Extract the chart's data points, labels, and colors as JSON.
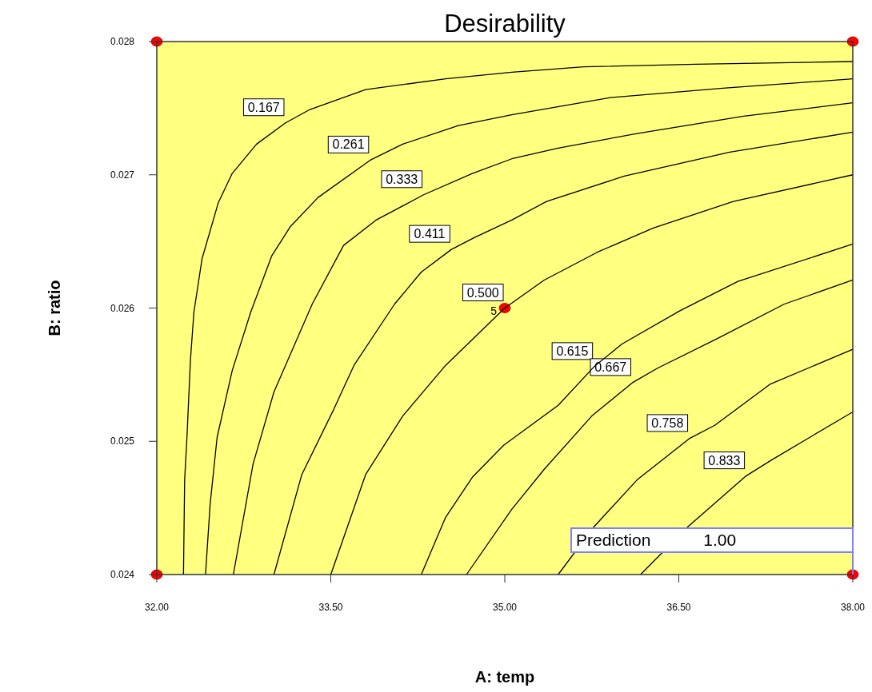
{
  "chart_data": {
    "type": "line",
    "title": "Desirability",
    "xlabel": "A: temp",
    "ylabel": "B: ratio",
    "xlim": [
      32,
      38
    ],
    "ylim": [
      0.024,
      0.028
    ],
    "xticks": [
      {
        "value": 32,
        "label": "32.00"
      },
      {
        "value": 33.5,
        "label": "33.50"
      },
      {
        "value": 35,
        "label": "35.00"
      },
      {
        "value": 36.5,
        "label": "36.50"
      },
      {
        "value": 38,
        "label": "38.00"
      }
    ],
    "yticks": [
      0.024,
      0.025,
      0.026,
      0.027,
      0.028
    ],
    "series": [
      {
        "name": "0.167",
        "color": "#000000",
        "x": [
          32.23,
          32.24,
          32.26,
          32.29,
          32.32,
          32.39,
          32.53,
          32.65,
          32.86,
          33.11,
          33.32,
          33.8,
          34.49,
          35.06,
          35.68,
          36.65,
          38
        ],
        "values": [
          0.024,
          0.02471,
          0.02503,
          0.02561,
          0.02597,
          0.02637,
          0.02679,
          0.02701,
          0.02723,
          0.02739,
          0.02749,
          0.02764,
          0.02772,
          0.02777,
          0.02781,
          0.02783,
          0.02785
        ]
      },
      {
        "name": "0.261",
        "color": "#000000",
        "x": [
          32.42,
          32.46,
          32.52,
          32.65,
          32.81,
          32.99,
          33.15,
          33.39,
          33.84,
          34.12,
          34.6,
          35.06,
          35.91,
          36.88,
          38
        ],
        "values": [
          0.024,
          0.02453,
          0.02503,
          0.02553,
          0.02597,
          0.02639,
          0.02661,
          0.02683,
          0.02711,
          0.02723,
          0.02737,
          0.02745,
          0.02758,
          0.02765,
          0.02772
        ]
      },
      {
        "name": "0.333",
        "color": "#000000",
        "x": [
          32.66,
          32.83,
          33.01,
          33.34,
          33.61,
          33.89,
          34.3,
          34.72,
          35.06,
          35.46,
          36.14,
          37.06,
          38
        ],
        "values": [
          0.024,
          0.02483,
          0.02537,
          0.02603,
          0.02647,
          0.02666,
          0.02685,
          0.02701,
          0.02712,
          0.0272,
          0.02731,
          0.02744,
          0.02754
        ]
      },
      {
        "name": "0.411",
        "color": "#000000",
        "x": [
          33.01,
          33.25,
          33.52,
          33.7,
          34.05,
          34.28,
          34.54,
          34.74,
          35.06,
          35.36,
          36.03,
          36.94,
          38
        ],
        "values": [
          0.024,
          0.02475,
          0.02523,
          0.02557,
          0.02603,
          0.02627,
          0.02644,
          0.02653,
          0.02666,
          0.0268,
          0.02699,
          0.02717,
          0.02732
        ]
      },
      {
        "name": "0.500",
        "color": "#000000",
        "x": [
          33.5,
          33.8,
          34.12,
          34.49,
          35,
          35.34,
          35.8,
          36.28,
          36.97,
          38
        ],
        "values": [
          0.024,
          0.02475,
          0.02519,
          0.02557,
          0.026,
          0.02621,
          0.02642,
          0.0266,
          0.0268,
          0.027
        ]
      },
      {
        "name": "0.615",
        "color": "#000000",
        "x": [
          34.28,
          34.49,
          34.72,
          34.99,
          35.46,
          35.77,
          36.01,
          36.51,
          37.01,
          38
        ],
        "values": [
          0.024,
          0.02443,
          0.02473,
          0.02497,
          0.02527,
          0.02556,
          0.02573,
          0.02598,
          0.0262,
          0.02648
        ]
      },
      {
        "name": "0.667",
        "color": "#000000",
        "x": [
          34.67,
          35.06,
          35.34,
          35.75,
          36.1,
          36.32,
          36.83,
          37.41,
          38
        ],
        "values": [
          0.024,
          0.02449,
          0.02479,
          0.02519,
          0.02544,
          0.02555,
          0.02577,
          0.02603,
          0.02621
        ]
      },
      {
        "name": "0.758",
        "color": "#000000",
        "x": [
          35.46,
          35.77,
          36.14,
          36.59,
          36.81,
          37.29,
          38
        ],
        "values": [
          0.024,
          0.02436,
          0.02471,
          0.02502,
          0.02512,
          0.02543,
          0.02569
        ]
      },
      {
        "name": "0.833",
        "color": "#000000",
        "x": [
          36.17,
          36.58,
          37.08,
          37.3,
          37.63,
          38
        ],
        "values": [
          0.024,
          0.02436,
          0.02474,
          0.02486,
          0.02503,
          0.02522
        ]
      },
      {
        "type": "scatter",
        "color": "#ff0000",
        "x": [
          32,
          38,
          35,
          32,
          38
        ],
        "values": [
          0.028,
          0.028,
          0.026,
          0.024,
          0.024
        ]
      }
    ],
    "annotations": [
      {
        "text": "5",
        "x": 35,
        "y": 0.026
      },
      "Prediction 1.00"
    ]
  }
}
